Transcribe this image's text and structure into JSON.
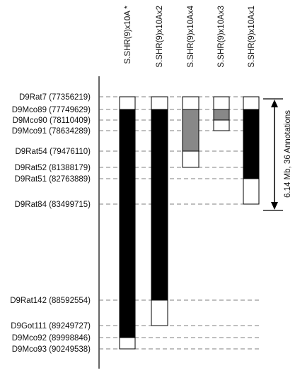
{
  "markers": [
    "D9Rat7 (77356219)",
    "D9Mco89 (77749629)",
    "D9Mco90 (78110409)",
    "D9Mco91 (78634289)",
    "D9Rat54 (79476110)",
    "D9Rat52 (81388179)",
    "D9Rat51 (82763889)",
    "D9Rat84 (83499715)",
    "D9Rat142 (88592554)",
    "D9Got111 (89249727)",
    "D9Mco92 (89998846)",
    "D9Mco93 (90249538)"
  ],
  "strains": [
    "S.SHR(9)x10A *",
    "S.SHR(9)x10Ax2",
    "S.SHR(9)x10Ax4",
    "S.SHR(9)x10Ax3",
    "S.SHR(9)x10Ax1"
  ],
  "annotation": "6.14 Mb, 36 Annotations"
}
